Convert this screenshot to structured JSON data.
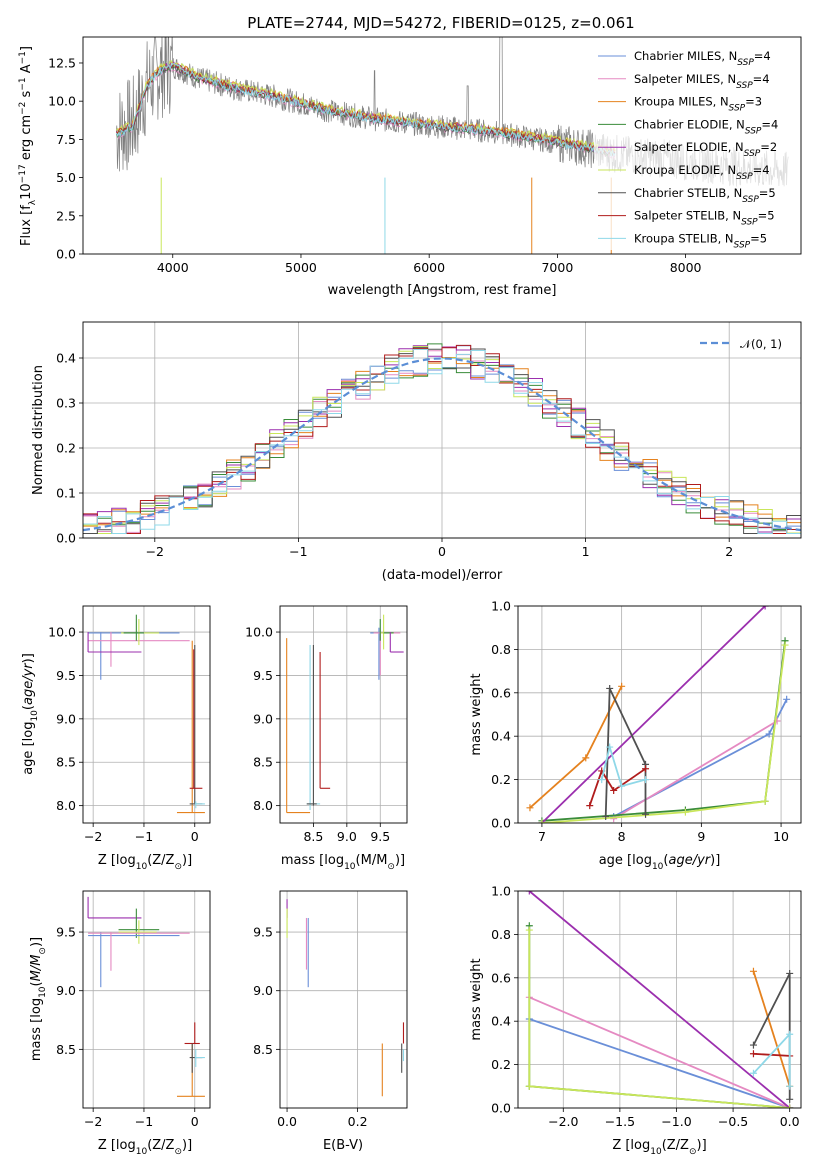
{
  "title": "PLATE=2744, MJD=54272, FIBERID=0125, z=0.061",
  "series": [
    {
      "name": "Chabrier MILES",
      "nssp": "4",
      "color": "#6a8fd8"
    },
    {
      "name": "Salpeter MILES",
      "nssp": "4",
      "color": "#e58ac2"
    },
    {
      "name": "Kroupa MILES",
      "nssp": "3",
      "color": "#e5821f"
    },
    {
      "name": "Chabrier ELODIE",
      "nssp": "4",
      "color": "#3a8c3a"
    },
    {
      "name": "Salpeter ELODIE",
      "nssp": "2",
      "color": "#9b2fae"
    },
    {
      "name": "Kroupa ELODIE",
      "nssp": "4",
      "color": "#c9e65a"
    },
    {
      "name": "Chabrier STELIB",
      "nssp": "5",
      "color": "#505050"
    },
    {
      "name": "Salpeter STELIB",
      "nssp": "5",
      "color": "#b01c1c"
    },
    {
      "name": "Kroupa STELIB",
      "nssp": "5",
      "color": "#8fd8e8"
    }
  ],
  "chart_data": [
    {
      "id": "spectrum",
      "type": "line",
      "title": "PLATE=2744, MJD=54272, FIBERID=0125, z=0.061",
      "xlabel": "wavelength [Angstrom, rest frame]",
      "ylabel_main": "Flux [f",
      "ylabel_tail": "10",
      "ylabel_exp": "−17",
      "ylabel_units": " erg cm",
      "ylabel_units_exp": "−2",
      "ylabel_s": " s",
      "ylabel_s_exp": "−1",
      "ylabel_a": " A",
      "ylabel_a_exp": "−1",
      "ylabel_close": "]",
      "xlim": [
        3300,
        8900
      ],
      "ylim": [
        0,
        14.2
      ],
      "xticks": [
        "4000",
        "5000",
        "6000",
        "7000",
        "8000"
      ],
      "yticks": [
        "0.0",
        "2.5",
        "5.0",
        "7.5",
        "10.0",
        "12.5"
      ],
      "continuum_points": [
        [
          3560,
          8.0
        ],
        [
          3700,
          8.6
        ],
        [
          3800,
          11.0
        ],
        [
          3900,
          12.0
        ],
        [
          4000,
          12.3
        ],
        [
          4200,
          11.5
        ],
        [
          4500,
          10.8
        ],
        [
          4800,
          10.3
        ],
        [
          5200,
          9.4
        ],
        [
          5600,
          8.8
        ],
        [
          6000,
          8.4
        ],
        [
          6500,
          8.0
        ],
        [
          7000,
          7.3
        ],
        [
          7500,
          6.5
        ],
        [
          8000,
          6.1
        ],
        [
          8500,
          5.6
        ],
        [
          8800,
          5.4
        ]
      ]
    },
    {
      "id": "residuals",
      "type": "histogram",
      "xlabel": "(data-model)/error",
      "ylabel": "Normed distribution",
      "xlim": [
        -2.5,
        2.5
      ],
      "ylim": [
        0,
        0.48
      ],
      "xticks": [
        "−2",
        "−1",
        "0",
        "1",
        "2"
      ],
      "yticks": [
        "0.0",
        "0.1",
        "0.2",
        "0.3",
        "0.4"
      ],
      "bin_width": 0.1,
      "legend": "𝒩(0, 1)",
      "reference_curve": "normal",
      "reference_color": "#5b8ed6"
    },
    {
      "id": "age-vs-Z",
      "type": "scatter",
      "xlabel_main": "Z [log",
      "xlabel_sub": "10",
      "xlabel_rest": "(Z/Z",
      "xlabel_sun": "⊙",
      "xlabel_close": ")]",
      "ylabel_main": "age  [log",
      "ylabel_sub": "10",
      "ylabel_rest": "(age/yr)]",
      "xlim": [
        -2.2,
        0.3
      ],
      "ylim": [
        7.8,
        10.3
      ],
      "xticks": [
        "−2",
        "−1",
        "0"
      ],
      "yticks": [
        "8.0",
        "8.5",
        "9.0",
        "9.5",
        "10.0"
      ]
    },
    {
      "id": "age-vs-mass",
      "type": "scatter",
      "xlabel_main": "mass [log",
      "xlabel_sub": "10",
      "xlabel_rest": "(M/M",
      "xlabel_sun": "⊙",
      "xlabel_close": ")]",
      "xlim": [
        8.0,
        9.9
      ],
      "ylim": [
        7.8,
        10.3
      ],
      "xticks": [
        "8.5",
        "9.0",
        "9.5"
      ],
      "yticks": [
        "8.0",
        "8.5",
        "9.0",
        "9.5",
        "10.0"
      ]
    },
    {
      "id": "weight-vs-age",
      "type": "line",
      "xlabel_main": "age  [log",
      "xlabel_sub": "10",
      "xlabel_rest": "(age/yr)]",
      "ylabel": "mass weight",
      "xlim": [
        6.7,
        10.25
      ],
      "ylim": [
        0,
        1.0
      ],
      "xticks": [
        "7",
        "8",
        "9",
        "10"
      ],
      "yticks": [
        "0.0",
        "0.2",
        "0.4",
        "0.6",
        "0.8",
        "1.0"
      ],
      "series": [
        {
          "name": "Chabrier MILES",
          "points": [
            [
              7.9,
              0.03
            ],
            [
              9.85,
              0.41
            ],
            [
              10.07,
              0.57
            ]
          ]
        },
        {
          "name": "Salpeter MILES",
          "points": [
            [
              7.9,
              0.02
            ],
            [
              9.95,
              0.47
            ]
          ]
        },
        {
          "name": "Kroupa MILES",
          "points": [
            [
              6.85,
              0.07
            ],
            [
              7.55,
              0.3
            ],
            [
              8.0,
              0.63
            ]
          ]
        },
        {
          "name": "Chabrier ELODIE",
          "points": [
            [
              7.0,
              0.01
            ],
            [
              8.8,
              0.06
            ],
            [
              9.8,
              0.1
            ],
            [
              10.05,
              0.84
            ]
          ]
        },
        {
          "name": "Salpeter ELODIE",
          "points": [
            [
              7.0,
              0.0
            ],
            [
              9.8,
              1.0
            ]
          ]
        },
        {
          "name": "Kroupa ELODIE",
          "points": [
            [
              7.0,
              0.0
            ],
            [
              8.8,
              0.05
            ],
            [
              9.8,
              0.1
            ],
            [
              10.05,
              0.82
            ]
          ]
        },
        {
          "name": "Chabrier STELIB",
          "points": [
            [
              7.8,
              0.03
            ],
            [
              7.85,
              0.62
            ],
            [
              8.3,
              0.27
            ],
            [
              8.3,
              0.04
            ]
          ]
        },
        {
          "name": "Salpeter STELIB",
          "points": [
            [
              7.6,
              0.08
            ],
            [
              7.75,
              0.24
            ],
            [
              7.9,
              0.15
            ],
            [
              8.3,
              0.25
            ]
          ]
        },
        {
          "name": "Kroupa STELIB",
          "points": [
            [
              7.75,
              0.2
            ],
            [
              7.85,
              0.35
            ],
            [
              8.0,
              0.17
            ],
            [
              8.3,
              0.2
            ]
          ]
        }
      ]
    },
    {
      "id": "mass-vs-Z",
      "type": "scatter",
      "xlabel_main": "Z [log",
      "xlabel_sub": "10",
      "xlabel_rest": "(Z/Z",
      "xlabel_sun": "⊙",
      "xlabel_close": ")]",
      "ylabel_main": "mass [log",
      "ylabel_sub": "10",
      "ylabel_rest": "(M/M",
      "ylabel_sun": "⊙",
      "ylabel_close": ")]",
      "xlim": [
        -2.2,
        0.3
      ],
      "ylim": [
        8.0,
        9.85
      ],
      "xticks": [
        "−2",
        "−1",
        "0"
      ],
      "yticks": [
        "8.5",
        "9.0",
        "9.5"
      ]
    },
    {
      "id": "mass-vs-ebv",
      "type": "scatter",
      "xlabel": "E(B-V)",
      "xlim": [
        -0.02,
        0.34
      ],
      "ylim": [
        8.0,
        9.85
      ],
      "xticks": [
        "0.0",
        "0.2"
      ],
      "yticks": [
        "8.5",
        "9.0",
        "9.5"
      ]
    },
    {
      "id": "weight-vs-Z",
      "type": "line",
      "xlabel_main": "Z [log",
      "xlabel_sub": "10",
      "xlabel_rest": "(Z/Z",
      "xlabel_sun": "⊙",
      "xlabel_close": ")]",
      "ylabel": "mass weight",
      "xlim": [
        -2.4,
        0.1
      ],
      "ylim": [
        0,
        1.0
      ],
      "xticks": [
        "−2.0",
        "−1.5",
        "−1.0",
        "−0.5",
        "0.0"
      ],
      "yticks": [
        "0.0",
        "0.2",
        "0.4",
        "0.6",
        "0.8",
        "1.0"
      ],
      "series": [
        {
          "name": "Chabrier MILES",
          "points": [
            [
              -2.3,
              0.41
            ],
            [
              0.0,
              0.0
            ]
          ]
        },
        {
          "name": "Salpeter MILES",
          "points": [
            [
              -2.3,
              0.51
            ],
            [
              0.0,
              0.0
            ]
          ]
        },
        {
          "name": "Kroupa MILES",
          "points": [
            [
              -0.32,
              0.63
            ],
            [
              0.0,
              0.1
            ]
          ]
        },
        {
          "name": "Chabrier ELODIE",
          "points": [
            [
              -2.3,
              0.84
            ],
            [
              -2.3,
              0.1
            ],
            [
              0.0,
              0.0
            ]
          ]
        },
        {
          "name": "Salpeter ELODIE",
          "points": [
            [
              -2.3,
              1.0
            ],
            [
              0.0,
              0.0
            ]
          ]
        },
        {
          "name": "Kroupa ELODIE",
          "points": [
            [
              -2.3,
              0.82
            ],
            [
              -2.3,
              0.1
            ],
            [
              0.0,
              0.0
            ]
          ]
        },
        {
          "name": "Chabrier STELIB",
          "points": [
            [
              -0.32,
              0.29
            ],
            [
              0.0,
              0.62
            ],
            [
              0.0,
              0.04
            ]
          ]
        },
        {
          "name": "Salpeter STELIB",
          "points": [
            [
              -0.32,
              0.25
            ],
            [
              0.0,
              0.24
            ]
          ]
        },
        {
          "name": "Kroupa STELIB",
          "points": [
            [
              -0.32,
              0.16
            ],
            [
              0.0,
              0.34
            ],
            [
              0.0,
              0.1
            ]
          ]
        }
      ]
    }
  ]
}
